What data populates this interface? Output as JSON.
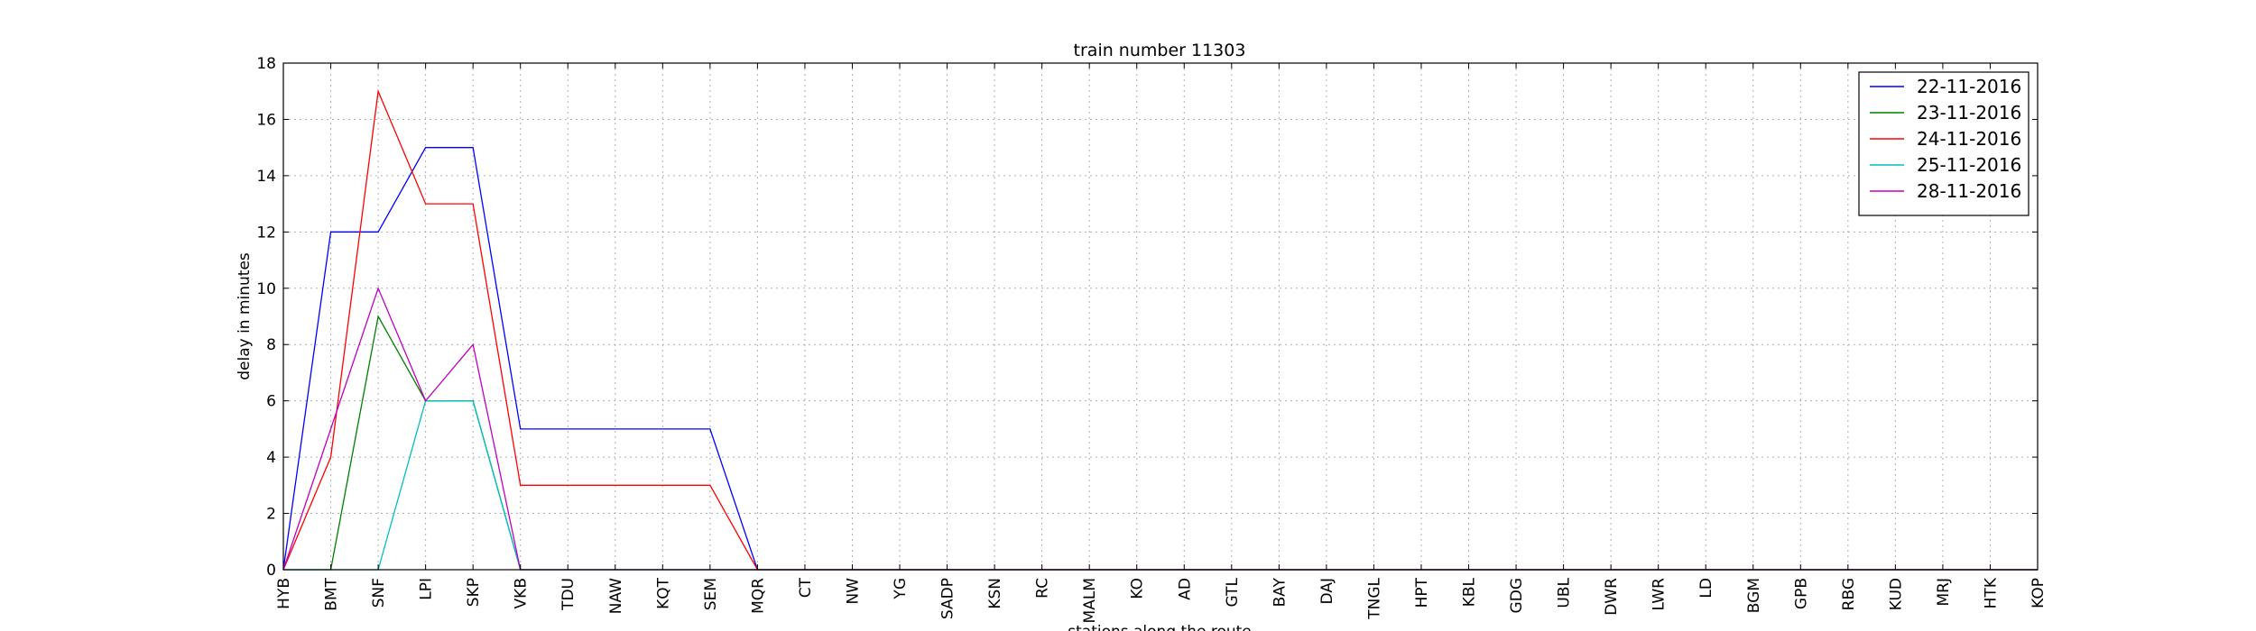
{
  "chart_data": {
    "type": "line",
    "title": "train number 11303",
    "xlabel": "stations along the route",
    "ylabel": "delay in minutes",
    "categories": [
      "HYB",
      "BMT",
      "SNF",
      "LPI",
      "SKP",
      "VKB",
      "TDU",
      "NAW",
      "KQT",
      "SEM",
      "MQR",
      "CT",
      "NW",
      "YG",
      "SADP",
      "KSN",
      "RC",
      "MALM",
      "KO",
      "AD",
      "GTL",
      "BAY",
      "DAJ",
      "TNGL",
      "HPT",
      "KBL",
      "GDG",
      "UBL",
      "DWR",
      "LWR",
      "LD",
      "BGM",
      "GPB",
      "RBG",
      "KUD",
      "MRJ",
      "HTK",
      "KOP"
    ],
    "ylim": [
      0,
      18
    ],
    "yticks": [
      0,
      2,
      4,
      6,
      8,
      10,
      12,
      14,
      16,
      18
    ],
    "grid": true,
    "legend_position": "top-right",
    "series": [
      {
        "name": "22-11-2016",
        "color": "#0000ff",
        "values": [
          0,
          12,
          12,
          15,
          15,
          5,
          5,
          5,
          5,
          5,
          0,
          0,
          0,
          0,
          0,
          0,
          0,
          0,
          0,
          0,
          0,
          0,
          0,
          0,
          0,
          0,
          0,
          0,
          0,
          0,
          0,
          0,
          0,
          0,
          0,
          0,
          0,
          0
        ]
      },
      {
        "name": "23-11-2016",
        "color": "#008000",
        "values": [
          0,
          0,
          9,
          6,
          6,
          0,
          0,
          0,
          0,
          0,
          0,
          0,
          0,
          0,
          0,
          0,
          0,
          0,
          0,
          0,
          0,
          0,
          0,
          0,
          0,
          0,
          0,
          0,
          0,
          0,
          0,
          0,
          0,
          0,
          0,
          0,
          0,
          0
        ]
      },
      {
        "name": "24-11-2016",
        "color": "#ff0000",
        "values": [
          0,
          4,
          17,
          13,
          13,
          3,
          3,
          3,
          3,
          3,
          0,
          0,
          0,
          0,
          0,
          0,
          0,
          0,
          0,
          0,
          0,
          0,
          0,
          0,
          0,
          0,
          0,
          0,
          0,
          0,
          0,
          0,
          0,
          0,
          0,
          0,
          0,
          0
        ]
      },
      {
        "name": "25-11-2016",
        "color": "#00bfbf",
        "values": [
          0,
          0,
          0,
          6,
          6,
          0,
          0,
          0,
          0,
          0,
          0,
          0,
          0,
          0,
          0,
          0,
          0,
          0,
          0,
          0,
          0,
          0,
          0,
          0,
          0,
          0,
          0,
          0,
          0,
          0,
          0,
          0,
          0,
          0,
          0,
          0,
          0,
          0
        ]
      },
      {
        "name": "28-11-2016",
        "color": "#bf00bf",
        "values": [
          0,
          5,
          10,
          6,
          8,
          0,
          0,
          0,
          0,
          0,
          0,
          0,
          0,
          0,
          0,
          0,
          0,
          0,
          0,
          0,
          0,
          0,
          0,
          0,
          0,
          0,
          0,
          0,
          0,
          0,
          0,
          0,
          0,
          0,
          0,
          0,
          0,
          0
        ]
      }
    ]
  }
}
